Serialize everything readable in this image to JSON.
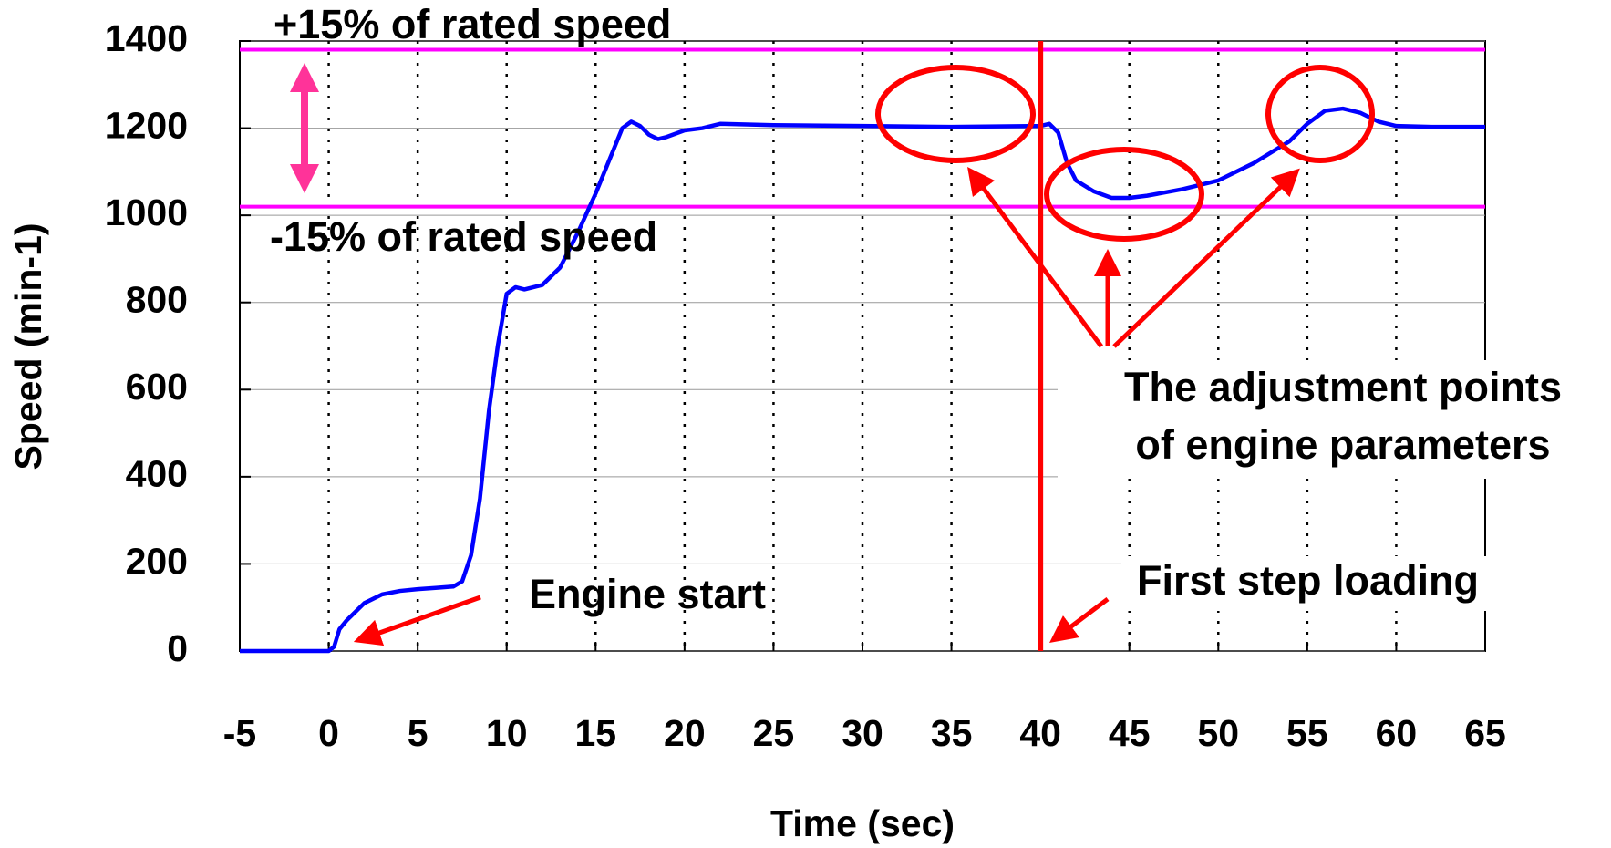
{
  "chart_data": {
    "type": "line",
    "xlabel": "Time (sec)",
    "ylabel": "Speed (min-1)",
    "xlim": [
      -5,
      65
    ],
    "ylim": [
      0,
      1400
    ],
    "xticks": [
      -5,
      0,
      5,
      10,
      15,
      20,
      25,
      30,
      35,
      40,
      45,
      50,
      55,
      60,
      65
    ],
    "yticks": [
      0,
      200,
      400,
      600,
      800,
      1000,
      1200,
      1400
    ],
    "grid": true,
    "series": [
      {
        "color": "#0000ff",
        "x": [
          -5,
          0,
          0.3,
          0.6,
          1,
          1.5,
          2,
          3,
          4,
          5,
          6,
          7,
          7.5,
          8,
          8.5,
          9,
          9.5,
          10,
          10.5,
          11,
          12,
          13,
          14,
          15,
          16,
          16.5,
          17,
          17.5,
          18,
          18.5,
          19,
          20,
          21,
          22,
          25,
          30,
          35,
          40,
          40.5,
          41,
          41.5,
          42,
          43,
          44,
          45,
          46,
          48,
          50,
          52,
          54,
          55,
          56,
          57,
          58,
          59,
          60,
          62,
          65
        ],
        "values": [
          0,
          0,
          10,
          50,
          70,
          90,
          110,
          130,
          138,
          142,
          145,
          148,
          160,
          220,
          350,
          550,
          700,
          820,
          835,
          830,
          840,
          880,
          960,
          1050,
          1150,
          1200,
          1215,
          1205,
          1185,
          1175,
          1180,
          1195,
          1200,
          1210,
          1207,
          1205,
          1203,
          1205,
          1210,
          1190,
          1120,
          1080,
          1055,
          1040,
          1040,
          1045,
          1060,
          1080,
          1120,
          1170,
          1210,
          1240,
          1245,
          1235,
          1215,
          1205,
          1203,
          1203
        ]
      }
    ],
    "reference_lines": [
      {
        "value": 1380,
        "label": "+15% of rated speed",
        "color": "#ff00ff"
      },
      {
        "value": 1020,
        "label": "-15% of rated speed",
        "color": "#ff00ff"
      }
    ],
    "event_line": {
      "x": 40,
      "label": "First step loading",
      "color": "#ff0000"
    },
    "annotations": [
      "Engine start",
      "The adjustment points",
      "of engine parameters"
    ]
  }
}
